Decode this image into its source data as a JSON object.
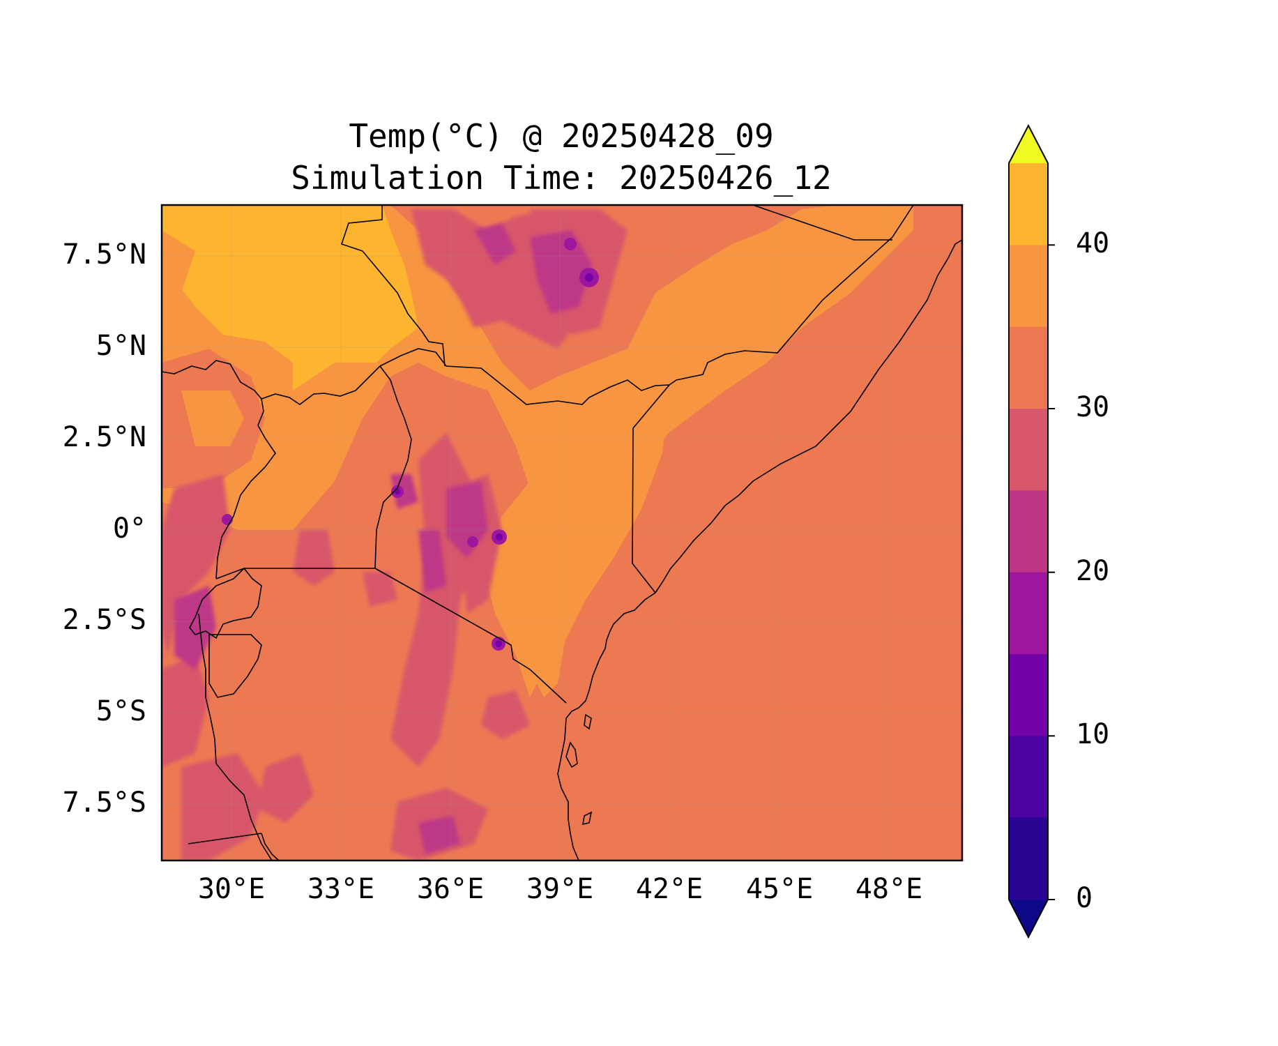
{
  "title_line1": "Temp(°C) @ 20250428_09",
  "title_line2": "Simulation Time: 20250426_12",
  "lat_ticks": [
    "7.5°N",
    "5°N",
    "2.5°N",
    "0°",
    "2.5°S",
    "5°S",
    "7.5°S"
  ],
  "lon_ticks": [
    "30°E",
    "33°E",
    "36°E",
    "39°E",
    "42°E",
    "45°E",
    "48°E"
  ],
  "colorbar": {
    "levels": [
      -5,
      0,
      5,
      10,
      15,
      20,
      25,
      30,
      35,
      40,
      45
    ],
    "tick_labels": [
      "0",
      "10",
      "20",
      "30",
      "40"
    ],
    "colors": [
      "#0d0887",
      "#2a0593",
      "#4c02a1",
      "#7201a8",
      "#9c179e",
      "#bd3786",
      "#d8576b",
      "#ed7953",
      "#f89540",
      "#fdb42f",
      "#f0f921"
    ],
    "extend": "both"
  },
  "map": {
    "lon_range": [
      28,
      50
    ],
    "lat_range": [
      -9,
      9
    ],
    "colormap": "plasma",
    "background_temp_c": 27,
    "ocean_temp_c": 27
  }
}
